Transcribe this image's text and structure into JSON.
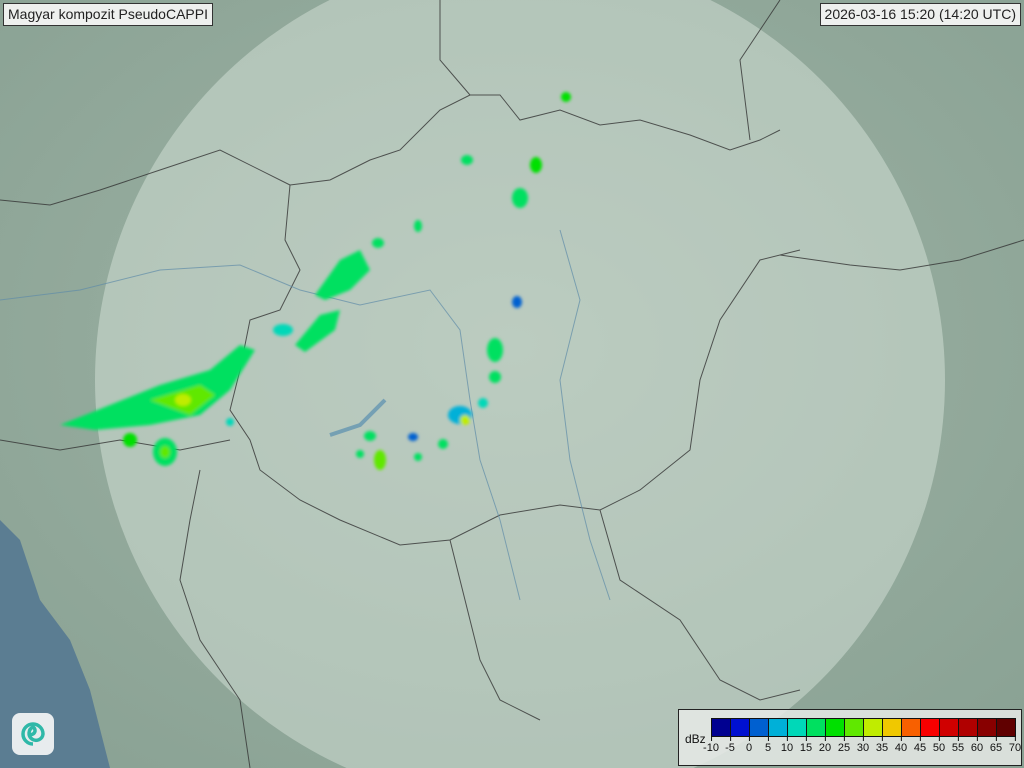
{
  "header": {
    "title": "Magyar kompozit  PseudoCAPPI",
    "timestamp": "2026-03-16 15:20 (14:20 UTC)"
  },
  "legend": {
    "unit": "dBz",
    "ticks": [
      "-10",
      "-5",
      "0",
      "5",
      "10",
      "15",
      "20",
      "25",
      "30",
      "35",
      "40",
      "45",
      "50",
      "55",
      "60",
      "65",
      "70"
    ],
    "colors": [
      "#000090",
      "#0010d0",
      "#0060d0",
      "#00b0d8",
      "#00d8b8",
      "#00e060",
      "#00e000",
      "#60e800",
      "#c0ec00",
      "#f0c800",
      "#f86000",
      "#f80000",
      "#d00000",
      "#b00000",
      "#880000",
      "#600000"
    ]
  },
  "logo": {
    "icon": "swirl-logo-icon"
  },
  "map": {
    "land_color": "#8fa89a",
    "sea_color": "#5b7d92",
    "coverage_color": "#d8e4dc"
  }
}
